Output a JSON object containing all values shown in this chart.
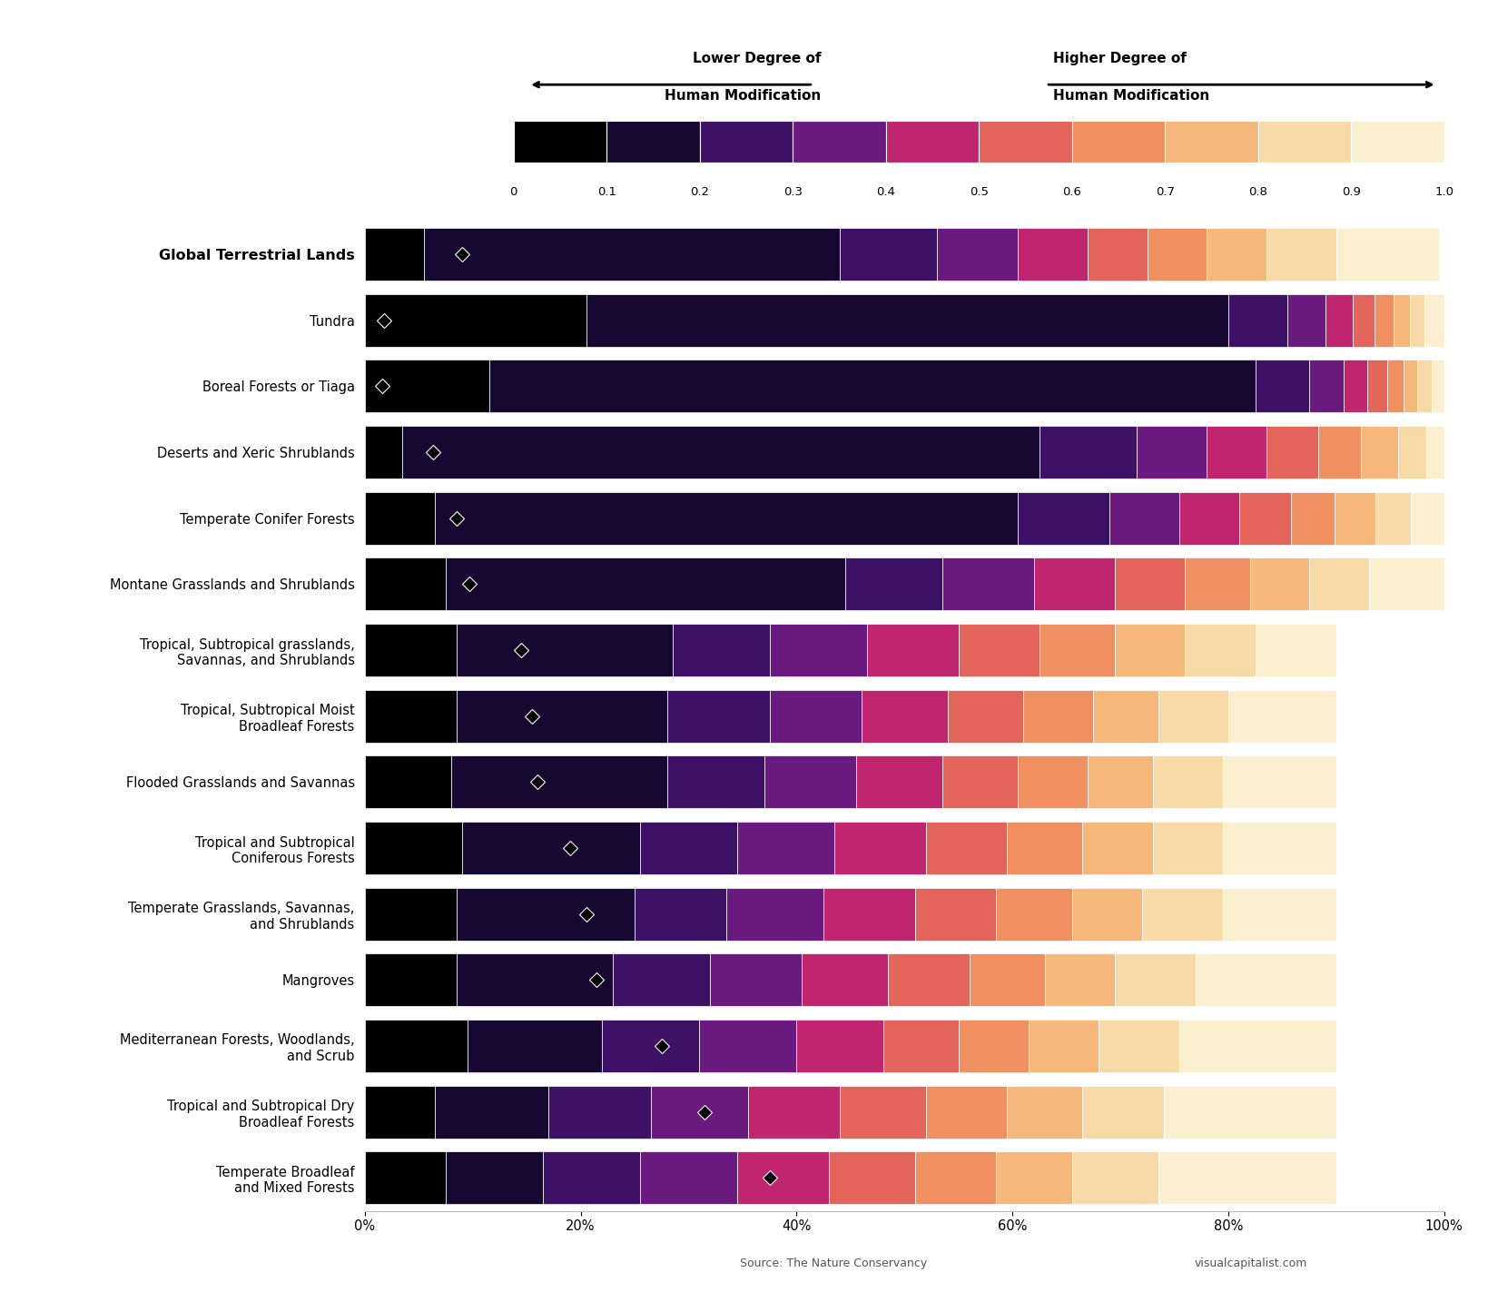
{
  "categories": [
    "Global Terrestrial Lands",
    "Tundra",
    "Boreal Forests or Tiaga",
    "Deserts and Xeric Shrublands",
    "Temperate Conifer Forests",
    "Montane Grasslands and Shrublands",
    "Tropical, Subtropical grasslands,\nSavannas, and Shrublands",
    "Tropical, Subtropical Moist\nBroadleaf Forests",
    "Flooded Grasslands and Savannas",
    "Tropical and Subtropical\nConiferous Forests",
    "Temperate Grasslands, Savannas,\nand Shrublands",
    "Mangroves",
    "Mediterranean Forests, Woodlands,\nand Scrub",
    "Tropical and Subtropical Dry\nBroadleaf Forests",
    "Temperate Broadleaf\nand Mixed Forests"
  ],
  "segments": [
    [
      0.055,
      0.385,
      0.09,
      0.075,
      0.065,
      0.055,
      0.055,
      0.055,
      0.065,
      0.095
    ],
    [
      0.205,
      0.595,
      0.055,
      0.035,
      0.025,
      0.02,
      0.018,
      0.015,
      0.014,
      0.018
    ],
    [
      0.115,
      0.71,
      0.05,
      0.032,
      0.022,
      0.018,
      0.015,
      0.013,
      0.013,
      0.012
    ],
    [
      0.035,
      0.59,
      0.09,
      0.065,
      0.055,
      0.048,
      0.04,
      0.034,
      0.026,
      0.018
    ],
    [
      0.065,
      0.54,
      0.085,
      0.065,
      0.055,
      0.048,
      0.04,
      0.038,
      0.033,
      0.031
    ],
    [
      0.075,
      0.37,
      0.09,
      0.085,
      0.075,
      0.065,
      0.06,
      0.055,
      0.055,
      0.07
    ],
    [
      0.085,
      0.2,
      0.09,
      0.09,
      0.085,
      0.075,
      0.07,
      0.065,
      0.065,
      0.075
    ],
    [
      0.085,
      0.195,
      0.095,
      0.085,
      0.08,
      0.07,
      0.065,
      0.06,
      0.065,
      0.1
    ],
    [
      0.08,
      0.2,
      0.09,
      0.085,
      0.08,
      0.07,
      0.065,
      0.06,
      0.065,
      0.105
    ],
    [
      0.09,
      0.165,
      0.09,
      0.09,
      0.085,
      0.075,
      0.07,
      0.065,
      0.065,
      0.105
    ],
    [
      0.085,
      0.165,
      0.085,
      0.09,
      0.085,
      0.075,
      0.07,
      0.065,
      0.075,
      0.105
    ],
    [
      0.085,
      0.145,
      0.09,
      0.085,
      0.08,
      0.075,
      0.07,
      0.065,
      0.075,
      0.13
    ],
    [
      0.095,
      0.125,
      0.09,
      0.09,
      0.08,
      0.07,
      0.065,
      0.065,
      0.075,
      0.145
    ],
    [
      0.065,
      0.105,
      0.095,
      0.09,
      0.085,
      0.08,
      0.075,
      0.07,
      0.075,
      0.16
    ],
    [
      0.075,
      0.09,
      0.09,
      0.09,
      0.085,
      0.08,
      0.075,
      0.07,
      0.08,
      0.165
    ]
  ],
  "median_values": [
    0.09,
    0.018,
    0.016,
    0.063,
    0.085,
    0.097,
    0.145,
    0.155,
    0.16,
    0.19,
    0.205,
    0.215,
    0.275,
    0.315,
    0.375
  ],
  "colors": [
    "#000000",
    "#170832",
    "#3d1165",
    "#6b1b7f",
    "#c0266e",
    "#e2645a",
    "#f09060",
    "#f5b87a",
    "#f8d9a8",
    "#faf0d0"
  ],
  "bg_color": "#ffffff",
  "colorbar_ticks": [
    "0",
    "0.1",
    "0.2",
    "0.3",
    "0.4",
    "0.5",
    "0.6",
    "0.7",
    "0.8",
    "0.9",
    "1.0"
  ],
  "source_text": "Source: The Nature Conservancy",
  "brand_text": "visualcapitalist.com",
  "lower_label_line1": "Lower Degree of",
  "lower_label_line2": "Human Modification",
  "higher_label_line1": "Higher Degree of",
  "higher_label_line2": "Human Modification"
}
